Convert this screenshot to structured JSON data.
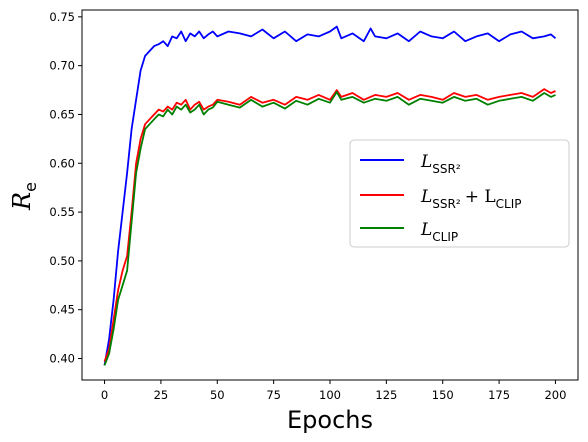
{
  "chart_data": {
    "type": "line",
    "title": "",
    "xlabel": "Epochs",
    "ylabel": "R",
    "ylabel_sub": "e",
    "xlim": [
      -10,
      210
    ],
    "ylim": [
      0.378,
      0.757
    ],
    "xticks": [
      0,
      25,
      50,
      75,
      100,
      125,
      150,
      175,
      200
    ],
    "yticks": [
      0.4,
      0.45,
      0.5,
      0.55,
      0.6,
      0.65,
      0.7,
      0.75
    ],
    "grid": false,
    "legend_placement": "center-right",
    "series": [
      {
        "name": "L",
        "name_sub": "SSR²",
        "color": "#0000ff",
        "x": [
          0,
          2,
          4,
          6,
          8,
          10,
          12,
          14,
          16,
          18,
          20,
          22,
          24,
          26,
          28,
          30,
          32,
          34,
          36,
          38,
          40,
          42,
          44,
          46,
          48,
          50,
          55,
          60,
          65,
          70,
          75,
          80,
          85,
          90,
          95,
          100,
          103,
          105,
          110,
          115,
          118,
          120,
          125,
          130,
          135,
          140,
          145,
          150,
          155,
          160,
          165,
          170,
          175,
          180,
          185,
          190,
          195,
          198,
          200
        ],
        "values": [
          0.393,
          0.42,
          0.46,
          0.51,
          0.55,
          0.59,
          0.635,
          0.665,
          0.695,
          0.71,
          0.715,
          0.72,
          0.722,
          0.725,
          0.72,
          0.73,
          0.728,
          0.735,
          0.725,
          0.733,
          0.73,
          0.735,
          0.728,
          0.732,
          0.735,
          0.73,
          0.735,
          0.733,
          0.73,
          0.737,
          0.728,
          0.735,
          0.725,
          0.732,
          0.73,
          0.735,
          0.74,
          0.728,
          0.733,
          0.725,
          0.738,
          0.73,
          0.728,
          0.733,
          0.725,
          0.735,
          0.73,
          0.728,
          0.735,
          0.725,
          0.73,
          0.733,
          0.725,
          0.732,
          0.735,
          0.728,
          0.73,
          0.732,
          0.728
        ]
      },
      {
        "name": "L",
        "name_sub": "SSR²",
        "name_extra": "+ L",
        "name_extra_sub": "CLIP",
        "color": "#ff0000",
        "x": [
          0,
          2,
          4,
          6,
          8,
          10,
          12,
          14,
          16,
          18,
          20,
          22,
          24,
          26,
          28,
          30,
          32,
          34,
          36,
          38,
          40,
          42,
          44,
          46,
          48,
          50,
          55,
          60,
          65,
          70,
          75,
          80,
          85,
          90,
          95,
          100,
          103,
          105,
          110,
          115,
          120,
          125,
          130,
          135,
          140,
          145,
          150,
          155,
          160,
          165,
          170,
          175,
          180,
          185,
          190,
          195,
          198,
          200
        ],
        "values": [
          0.397,
          0.41,
          0.44,
          0.47,
          0.49,
          0.505,
          0.55,
          0.6,
          0.625,
          0.64,
          0.645,
          0.65,
          0.655,
          0.653,
          0.658,
          0.655,
          0.662,
          0.66,
          0.665,
          0.655,
          0.66,
          0.663,
          0.655,
          0.658,
          0.66,
          0.665,
          0.663,
          0.66,
          0.668,
          0.662,
          0.665,
          0.66,
          0.668,
          0.665,
          0.67,
          0.665,
          0.675,
          0.668,
          0.672,
          0.665,
          0.67,
          0.668,
          0.672,
          0.665,
          0.67,
          0.668,
          0.665,
          0.672,
          0.668,
          0.67,
          0.665,
          0.668,
          0.67,
          0.672,
          0.668,
          0.676,
          0.672,
          0.674
        ]
      },
      {
        "name": "L",
        "name_sub": "CLIP",
        "color": "#008000",
        "x": [
          0,
          2,
          4,
          6,
          8,
          10,
          12,
          14,
          16,
          18,
          20,
          22,
          24,
          26,
          28,
          30,
          32,
          34,
          36,
          38,
          40,
          42,
          44,
          46,
          48,
          50,
          55,
          60,
          65,
          70,
          75,
          80,
          85,
          90,
          95,
          100,
          103,
          105,
          110,
          115,
          120,
          125,
          130,
          135,
          140,
          145,
          150,
          155,
          160,
          165,
          170,
          175,
          180,
          185,
          190,
          195,
          198,
          200
        ],
        "values": [
          0.393,
          0.405,
          0.43,
          0.46,
          0.475,
          0.49,
          0.54,
          0.59,
          0.615,
          0.635,
          0.64,
          0.645,
          0.65,
          0.648,
          0.655,
          0.65,
          0.658,
          0.655,
          0.66,
          0.652,
          0.655,
          0.66,
          0.65,
          0.655,
          0.657,
          0.663,
          0.66,
          0.657,
          0.665,
          0.658,
          0.662,
          0.656,
          0.664,
          0.66,
          0.666,
          0.662,
          0.673,
          0.665,
          0.668,
          0.662,
          0.666,
          0.664,
          0.668,
          0.66,
          0.666,
          0.664,
          0.662,
          0.668,
          0.664,
          0.666,
          0.66,
          0.664,
          0.666,
          0.668,
          0.664,
          0.672,
          0.668,
          0.67
        ]
      }
    ]
  }
}
